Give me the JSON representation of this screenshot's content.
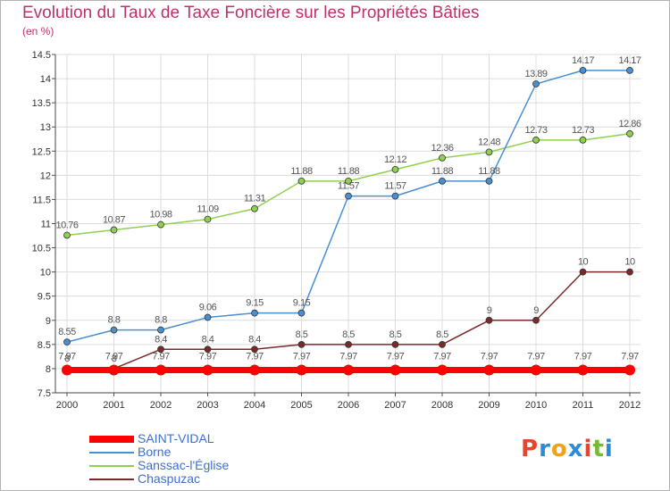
{
  "header": {
    "title": "Evolution du Taux de Taxe Foncière sur les Propriétés Bâties",
    "unit": "(en %)"
  },
  "logo": {
    "text": "Proxiti",
    "letters": [
      "P",
      "r",
      "o",
      "x",
      "i",
      "t",
      "i"
    ],
    "colors": [
      "#e8452c",
      "#2a8bd6",
      "#f2a11b",
      "#2a8bd6",
      "#e8452c",
      "#7ab83a",
      "#2a8bd6"
    ]
  },
  "chart_data": {
    "type": "line",
    "title": "Evolution du Taux de Taxe Foncière sur les Propriétés Bâties",
    "ylabel": "(en %)",
    "x": [
      "2000",
      "2001",
      "2002",
      "2003",
      "2004",
      "2005",
      "2006",
      "2007",
      "2008",
      "2009",
      "2010",
      "2011",
      "2012"
    ],
    "ylim": [
      7.5,
      14.5
    ],
    "yticks": [
      "7.5",
      "8",
      "8.5",
      "9",
      "9.5",
      "10",
      "10.5",
      "11",
      "11.5",
      "12",
      "12.5",
      "13",
      "13.5",
      "14",
      "14.5"
    ],
    "grid": true,
    "legend_position": "bottom-left",
    "series": [
      {
        "name": "SAINT-VIDAL",
        "color": "#ff0000",
        "values": [
          7.97,
          7.97,
          7.97,
          7.97,
          7.97,
          7.97,
          7.97,
          7.97,
          7.97,
          7.97,
          7.97,
          7.97,
          7.97
        ],
        "labels": [
          "7.97",
          "7.97",
          "7.97",
          "7.97",
          "7.97",
          "7.97",
          "7.97",
          "7.97",
          "7.97",
          "7.97",
          "7.97",
          "7.97",
          "7.97"
        ]
      },
      {
        "name": "Borne",
        "color": "#4a8fd0",
        "values": [
          8.55,
          8.8,
          8.8,
          9.06,
          9.15,
          9.15,
          11.57,
          11.57,
          11.88,
          11.88,
          13.89,
          14.17,
          14.17
        ],
        "labels": [
          "8.55",
          "8.8",
          "8.8",
          "9.06",
          "9.15",
          "9.15",
          "11.57",
          "11.57",
          "11.88",
          "11.88",
          "13.89",
          "14.17",
          "14.17"
        ]
      },
      {
        "name": "Sanssac-l'Église",
        "color": "#8fd14f",
        "values": [
          10.76,
          10.87,
          10.98,
          11.09,
          11.31,
          11.88,
          11.88,
          12.12,
          12.36,
          12.48,
          12.73,
          12.73,
          12.86
        ],
        "labels": [
          "10.76",
          "10.87",
          "10.98",
          "11.09",
          "11.31",
          "11.88",
          "11.88",
          "12.12",
          "12.36",
          "12.48",
          "12.73",
          "12.73",
          "12.86"
        ]
      },
      {
        "name": "Chaspuzac",
        "color": "#7a2a2a",
        "values": [
          8,
          8,
          8.4,
          8.4,
          8.4,
          8.5,
          8.5,
          8.5,
          8.5,
          9,
          9,
          10,
          10
        ],
        "labels": [
          "8",
          "8",
          "8.4",
          "8.4",
          "8.4",
          "8.5",
          "8.5",
          "8.5",
          "8.5",
          "9",
          "9",
          "10",
          "10"
        ]
      }
    ]
  }
}
